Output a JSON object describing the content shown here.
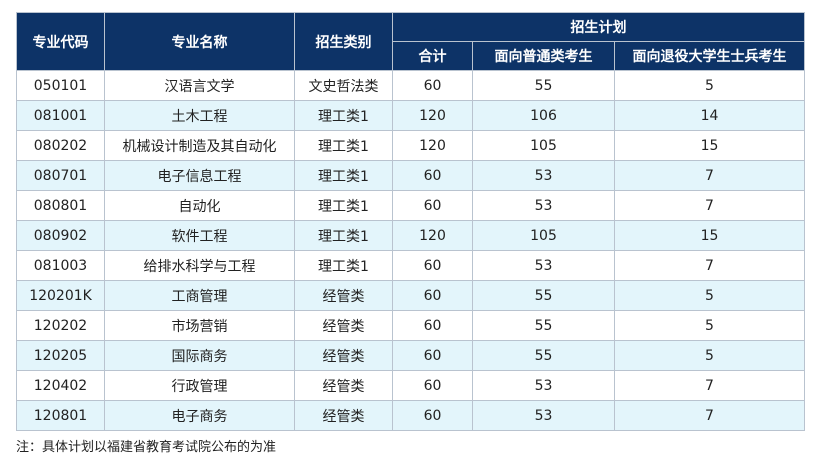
{
  "headers": {
    "code": "专业代码",
    "name": "专业名称",
    "category": "招生类别",
    "plan": "招生计划",
    "total": "合计",
    "general": "面向普通类考生",
    "veteran": "面向退役大学生士兵考生"
  },
  "rows": [
    {
      "code": "050101",
      "name": "汉语言文学",
      "category": "文史哲法类",
      "total": "60",
      "general": "55",
      "veteran": "5"
    },
    {
      "code": "081001",
      "name": "土木工程",
      "category": "理工类1",
      "total": "120",
      "general": "106",
      "veteran": "14"
    },
    {
      "code": "080202",
      "name": "机械设计制造及其自动化",
      "category": "理工类1",
      "total": "120",
      "general": "105",
      "veteran": "15"
    },
    {
      "code": "080701",
      "name": "电子信息工程",
      "category": "理工类1",
      "total": "60",
      "general": "53",
      "veteran": "7"
    },
    {
      "code": "080801",
      "name": "自动化",
      "category": "理工类1",
      "total": "60",
      "general": "53",
      "veteran": "7"
    },
    {
      "code": "080902",
      "name": "软件工程",
      "category": "理工类1",
      "total": "120",
      "general": "105",
      "veteran": "15"
    },
    {
      "code": "081003",
      "name": "给排水科学与工程",
      "category": "理工类1",
      "total": "60",
      "general": "53",
      "veteran": "7"
    },
    {
      "code": "120201K",
      "name": "工商管理",
      "category": "经管类",
      "total": "60",
      "general": "55",
      "veteran": "5"
    },
    {
      "code": "120202",
      "name": "市场营销",
      "category": "经管类",
      "total": "60",
      "general": "55",
      "veteran": "5"
    },
    {
      "code": "120205",
      "name": "国际商务",
      "category": "经管类",
      "total": "60",
      "general": "55",
      "veteran": "5"
    },
    {
      "code": "120402",
      "name": "行政管理",
      "category": "经管类",
      "total": "60",
      "general": "53",
      "veteran": "7"
    },
    {
      "code": "120801",
      "name": "电子商务",
      "category": "经管类",
      "total": "60",
      "general": "53",
      "veteran": "7"
    }
  ],
  "note": "注：具体计划以福建省教育考试院公布的为准",
  "colors": {
    "header_bg": "#0d3367",
    "stripe_bg": "#e3f5fb",
    "border": "#b9c3cf"
  }
}
